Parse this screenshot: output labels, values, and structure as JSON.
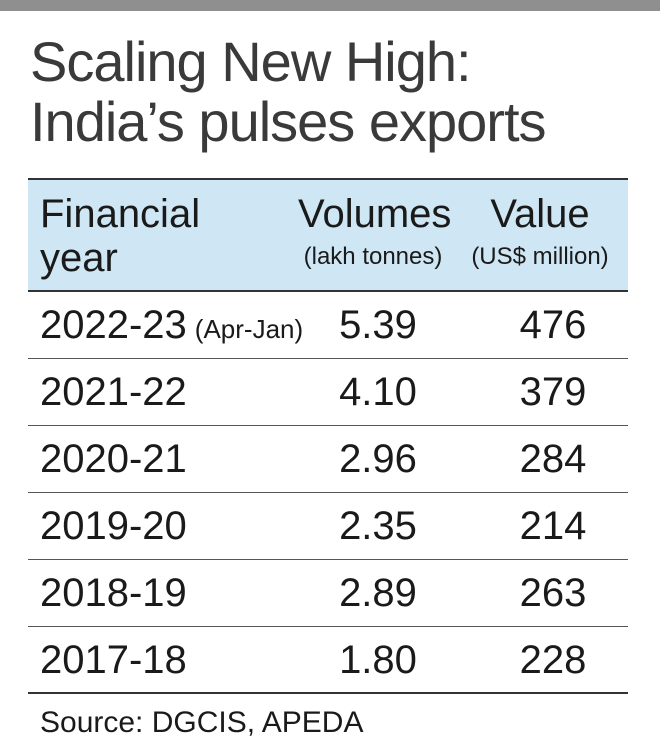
{
  "title": {
    "line1": "Scaling New High:",
    "line2": "India’s pulses exports"
  },
  "columns": {
    "year": {
      "line1": "Financial",
      "line2": "year"
    },
    "volume": {
      "label": "Volumes",
      "unit": "(lakh tonnes)"
    },
    "value": {
      "label": "Value",
      "unit": "(US$ million)"
    }
  },
  "rows": [
    {
      "year": "2022-23",
      "note": "(Apr-Jan)",
      "volume": "5.39",
      "value": "476"
    },
    {
      "year": "2021-22",
      "note": "",
      "volume": "4.10",
      "value": "379"
    },
    {
      "year": "2020-21",
      "note": "",
      "volume": "2.96",
      "value": "284"
    },
    {
      "year": "2019-20",
      "note": "",
      "volume": "2.35",
      "value": "214"
    },
    {
      "year": "2018-19",
      "note": "",
      "volume": "2.89",
      "value": "263"
    },
    {
      "year": "2017-18",
      "note": "",
      "volume": "1.80",
      "value": "228"
    }
  ],
  "source": "Source: DGCIS, APEDA",
  "colors": {
    "header_bg": "#cfe7f4",
    "top_bar": "#8f8f8f",
    "title_text": "#3a3a3a"
  },
  "chart_data": {
    "type": "table",
    "title": "Scaling New High: India’s pulses exports",
    "columns": [
      "Financial year",
      "Volumes (lakh tonnes)",
      "Value (US$ million)"
    ],
    "categories": [
      "2022-23 (Apr-Jan)",
      "2021-22",
      "2020-21",
      "2019-20",
      "2018-19",
      "2017-18"
    ],
    "series": [
      {
        "name": "Volumes",
        "values": [
          5.39,
          4.1,
          2.96,
          2.35,
          2.89,
          1.8
        ]
      },
      {
        "name": "Value",
        "values": [
          476,
          379,
          284,
          214,
          263,
          228
        ]
      }
    ]
  }
}
